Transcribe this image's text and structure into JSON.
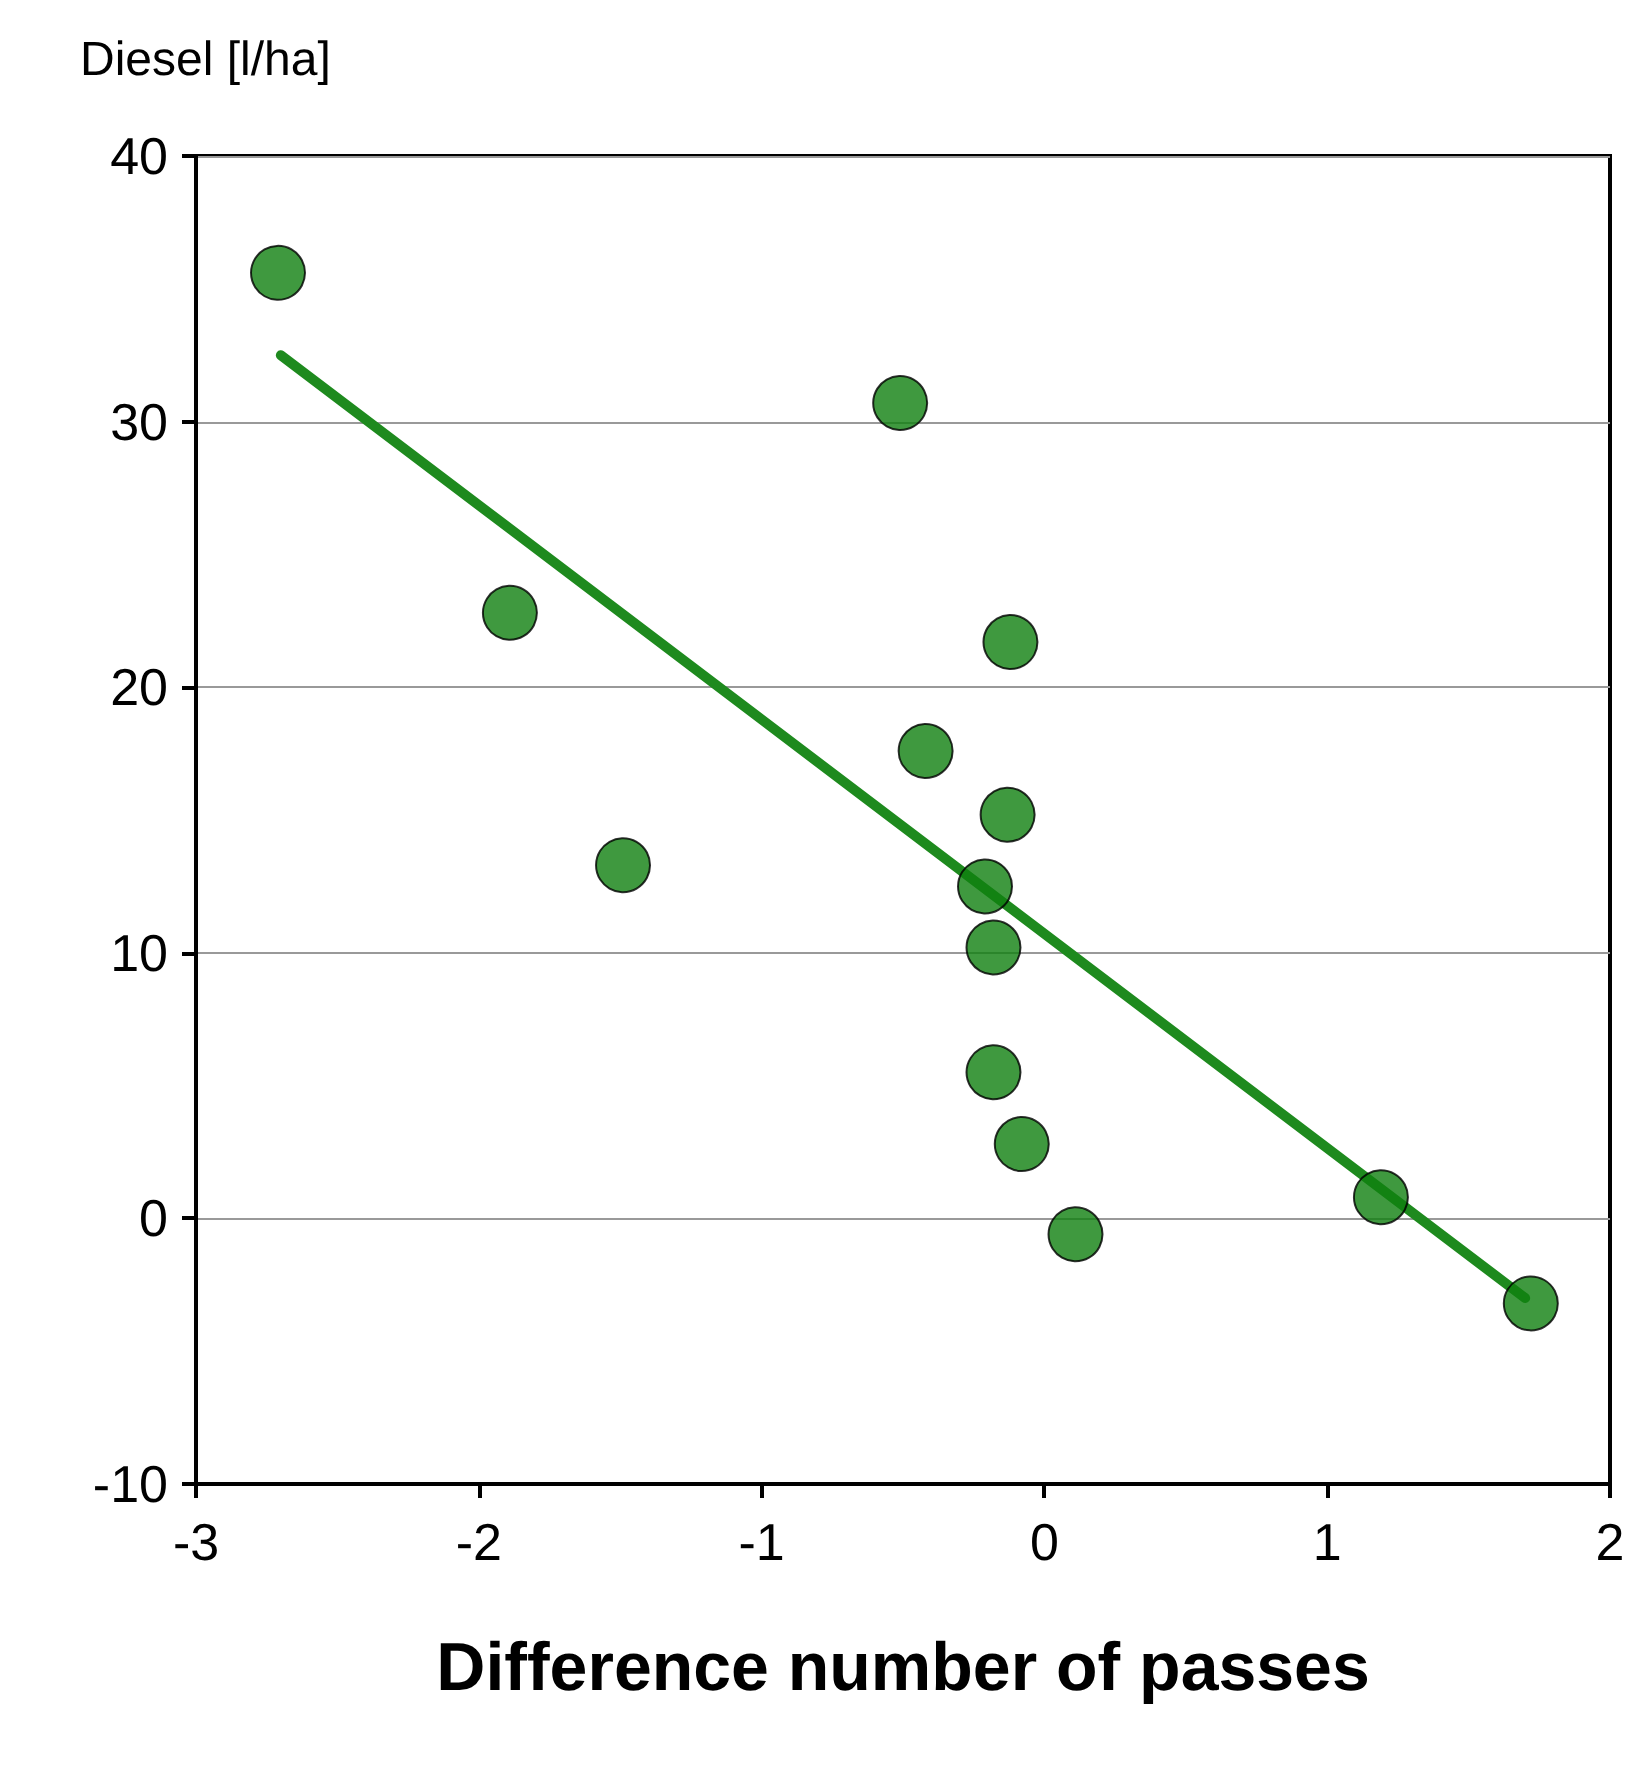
{
  "chart_data": {
    "type": "scatter",
    "ylabel": "Diesel [l/ha]",
    "xlabel": "Difference number of passes",
    "xlim": [
      -3,
      2
    ],
    "xticks": [
      -3,
      -2,
      -1,
      0,
      1,
      2
    ],
    "ylim": [
      -10,
      40
    ],
    "yticks": [
      -10,
      0,
      10,
      20,
      30,
      40
    ],
    "grid": "y",
    "marker": "circle",
    "series": [
      {
        "color": "#0f7f0f",
        "x": [
          -2.71,
          -1.89,
          -1.49,
          -0.51,
          -0.42,
          -0.12,
          -0.13,
          -0.21,
          -0.18,
          -0.18,
          -0.08,
          0.11,
          1.19,
          1.72
        ],
        "values": [
          35.6,
          22.8,
          13.3,
          30.7,
          17.6,
          21.7,
          15.2,
          12.5,
          10.2,
          5.5,
          2.8,
          -0.6,
          0.8,
          -3.2
        ]
      },
      {
        "type": "line",
        "color": "#1e8a1e",
        "marker": "none",
        "line_style": "solid",
        "x": [
          -2.7,
          1.7
        ],
        "values": [
          32.5,
          -3.0
        ]
      }
    ]
  }
}
